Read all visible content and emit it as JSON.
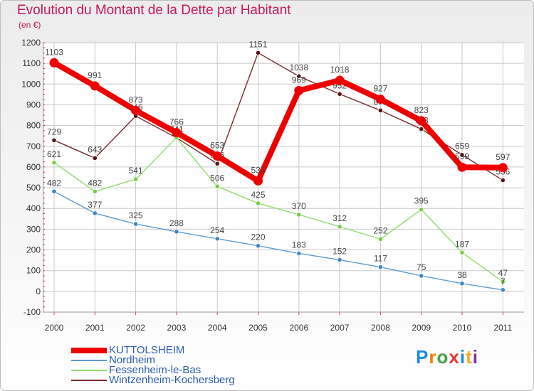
{
  "chart_data": {
    "type": "line",
    "title": "Evolution du Montant de la Dette par Habitant",
    "subtitle": "(en €)",
    "xlabel": "",
    "ylabel": "",
    "categories": [
      "2000",
      "2001",
      "2002",
      "2003",
      "2004",
      "2005",
      "2006",
      "2007",
      "2008",
      "2009",
      "2010",
      "2011"
    ],
    "ylim": [
      -100,
      1200
    ],
    "yticks": [
      -100,
      0,
      100,
      200,
      300,
      400,
      500,
      600,
      700,
      800,
      900,
      1000,
      1100,
      1200
    ],
    "grid": true,
    "legend_position": "bottom-left",
    "series": [
      {
        "name": "Wintzenheim-Kochersberg",
        "color": "#7b2b2b",
        "marker": "#5a1414",
        "values": [
          729,
          643,
          846,
          741,
          616,
          1151,
          1038,
          952,
          873,
          783,
          659,
          536
        ]
      },
      {
        "name": "Fessenheim-le-Bas",
        "color": "#8fdc6e",
        "marker": "#77cc44",
        "values": [
          621,
          482,
          541,
          741,
          506,
          425,
          370,
          312,
          252,
          395,
          187,
          47
        ]
      },
      {
        "name": "Nordheim",
        "color": "#5b9bd5",
        "marker": "#3f86c9",
        "values": [
          482,
          377,
          325,
          288,
          254,
          220,
          183,
          152,
          117,
          75,
          38,
          7
        ]
      },
      {
        "name": "KUTTOLSHEIM",
        "color": "#ee0000",
        "marker": "#ee0000",
        "values": [
          1103,
          991,
          873,
          766,
          653,
          533,
          969,
          1018,
          927,
          823,
          599,
          597
        ]
      }
    ]
  },
  "legend": [
    {
      "label": "KUTTOLSHEIM",
      "color": "#ee0000"
    },
    {
      "label": "Nordheim",
      "color": "#5b9bd5"
    },
    {
      "label": "Fessenheim-le-Bas",
      "color": "#8fdc6e"
    },
    {
      "label": "Wintzenheim-Kochersberg",
      "color": "#7b2b2b"
    }
  ],
  "logo": {
    "letters": [
      "P",
      "r",
      "o",
      "x",
      "i",
      "t",
      "i"
    ],
    "colors": [
      "#1e88e5",
      "#f57c00",
      "#43a047",
      "#e53935",
      "#1e88e5",
      "#f9a825",
      "#8e24aa"
    ]
  }
}
